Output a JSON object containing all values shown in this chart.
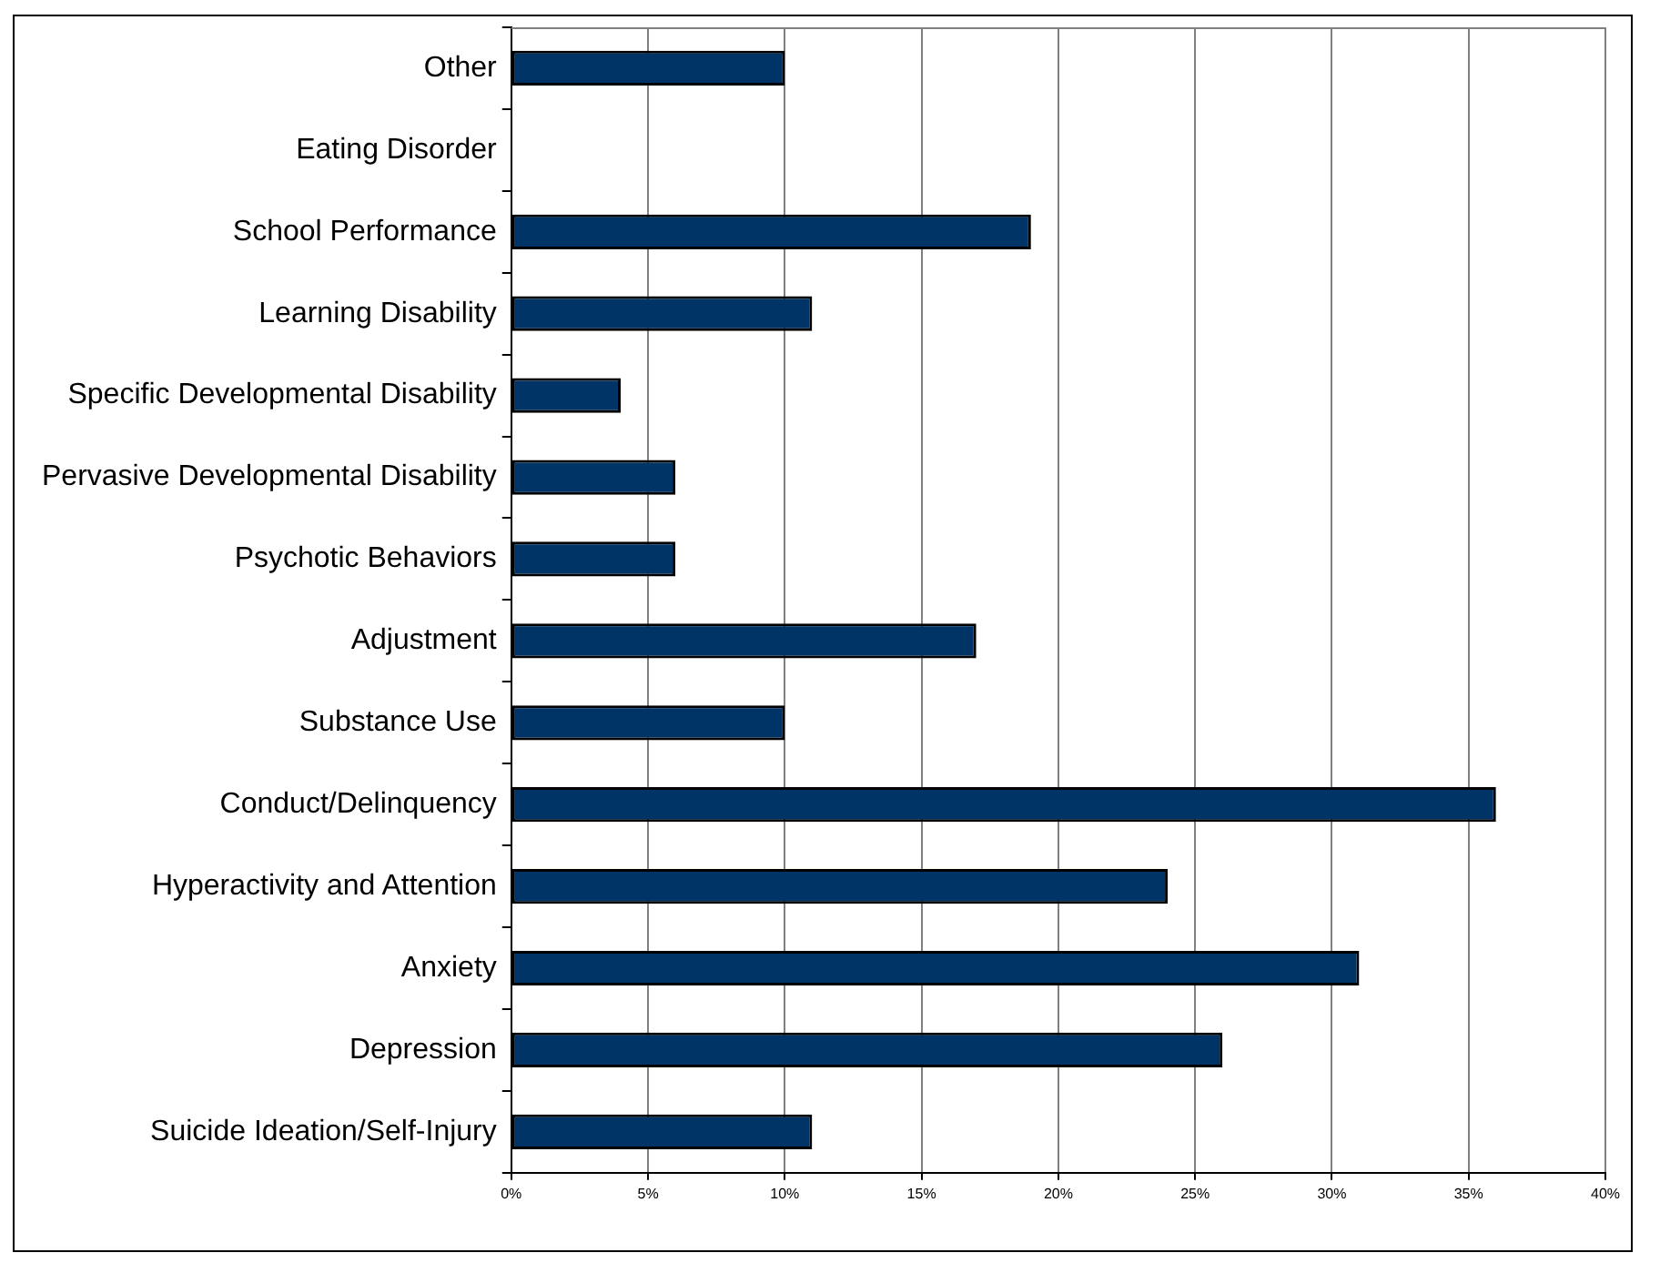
{
  "chart_data": {
    "type": "bar",
    "orientation": "horizontal",
    "categories": [
      "Other",
      "Eating Disorder",
      "School Performance",
      "Learning Disability",
      "Specific Developmental Disability",
      "Pervasive Developmental Disability",
      "Psychotic Behaviors",
      "Adjustment",
      "Substance Use",
      "Conduct/Delinquency",
      "Hyperactivity and Attention",
      "Anxiety",
      "Depression",
      "Suicide Ideation/Self-Injury"
    ],
    "values": [
      10,
      0,
      19,
      11,
      4,
      6,
      6,
      17,
      10,
      36,
      24,
      31,
      26,
      11
    ],
    "color": "#003366",
    "xlim": [
      0,
      40
    ],
    "xticks": [
      {
        "value": 0,
        "label": "0%"
      },
      {
        "value": 5,
        "label": "5%"
      },
      {
        "value": 10,
        "label": "10%"
      },
      {
        "value": 15,
        "label": "15%"
      },
      {
        "value": 20,
        "label": "20%"
      },
      {
        "value": 25,
        "label": "25%"
      },
      {
        "value": 30,
        "label": "30%"
      },
      {
        "value": 35,
        "label": "35%"
      },
      {
        "value": 40,
        "label": "40%"
      }
    ],
    "grid": "x",
    "legend": false
  }
}
